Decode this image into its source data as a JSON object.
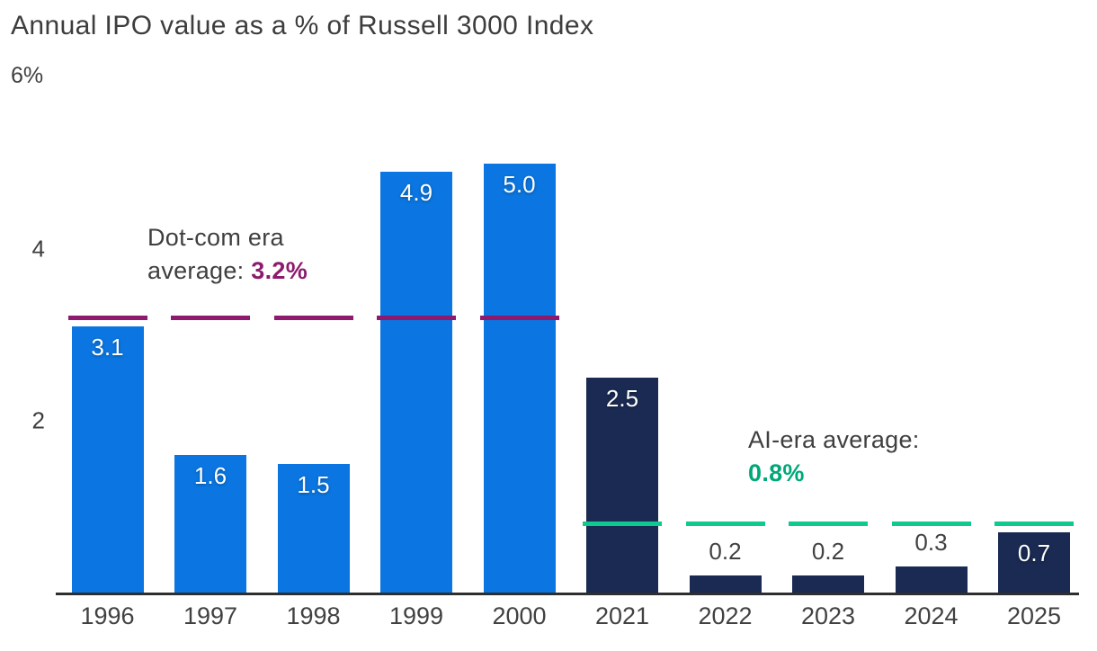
{
  "page": {
    "background": "#ffffff"
  },
  "chart_data": {
    "type": "bar",
    "title": "Annual IPO value as a % of Russell 3000 Index",
    "xlabel": "",
    "ylabel": "",
    "ylim": [
      0,
      6
    ],
    "grid": false,
    "legend": false,
    "y_axis": {
      "top_label": "6%",
      "ticks": [
        {
          "value": 4,
          "label": "4"
        },
        {
          "value": 2,
          "label": "2"
        }
      ]
    },
    "categories": [
      "1996",
      "1997",
      "1998",
      "1999",
      "2000",
      "2021",
      "2022",
      "2023",
      "2024",
      "2025"
    ],
    "values": [
      3.1,
      1.6,
      1.5,
      4.9,
      5.0,
      2.5,
      0.2,
      0.2,
      0.3,
      0.7
    ],
    "value_labels": [
      "3.1",
      "1.6",
      "1.5",
      "4.9",
      "5.0",
      "2.5",
      "0.2",
      "0.2",
      "0.3",
      "0.7"
    ],
    "label_placement": [
      "inside",
      "inside",
      "inside",
      "inside",
      "inside",
      "inside",
      "above",
      "above",
      "above",
      "inside"
    ],
    "bar_groups": [
      "dotcom",
      "dotcom",
      "dotcom",
      "dotcom",
      "dotcom",
      "ai",
      "ai",
      "ai",
      "ai",
      "ai"
    ],
    "colors": {
      "dotcom_bar": "#0b76e1",
      "ai_bar": "#1a2a52",
      "dotcom_line": "#8d1a6d",
      "ai_line": "#10c98e",
      "dotcom_highlight_text": "#8d1a6d",
      "ai_highlight_text": "#00a878",
      "axis_line": "#2e2e2e",
      "label_text": "#3f3f3f"
    },
    "reference_lines": [
      {
        "id": "dotcom",
        "value": 3.2,
        "color": "#8d1a6d",
        "column_start": 0,
        "column_end": 4
      },
      {
        "id": "ai",
        "value": 0.8,
        "color": "#10c98e",
        "column_start": 5,
        "column_end": 9
      }
    ],
    "annotations": [
      {
        "id": "dotcom",
        "line1": "Dot-com era",
        "line2_prefix": "average: ",
        "highlight": "3.2%",
        "highlight_color": "#8d1a6d"
      },
      {
        "id": "ai",
        "line1": "AI-era average:",
        "line2_prefix": "",
        "highlight": "0.8%",
        "highlight_color": "#00a878"
      }
    ]
  }
}
